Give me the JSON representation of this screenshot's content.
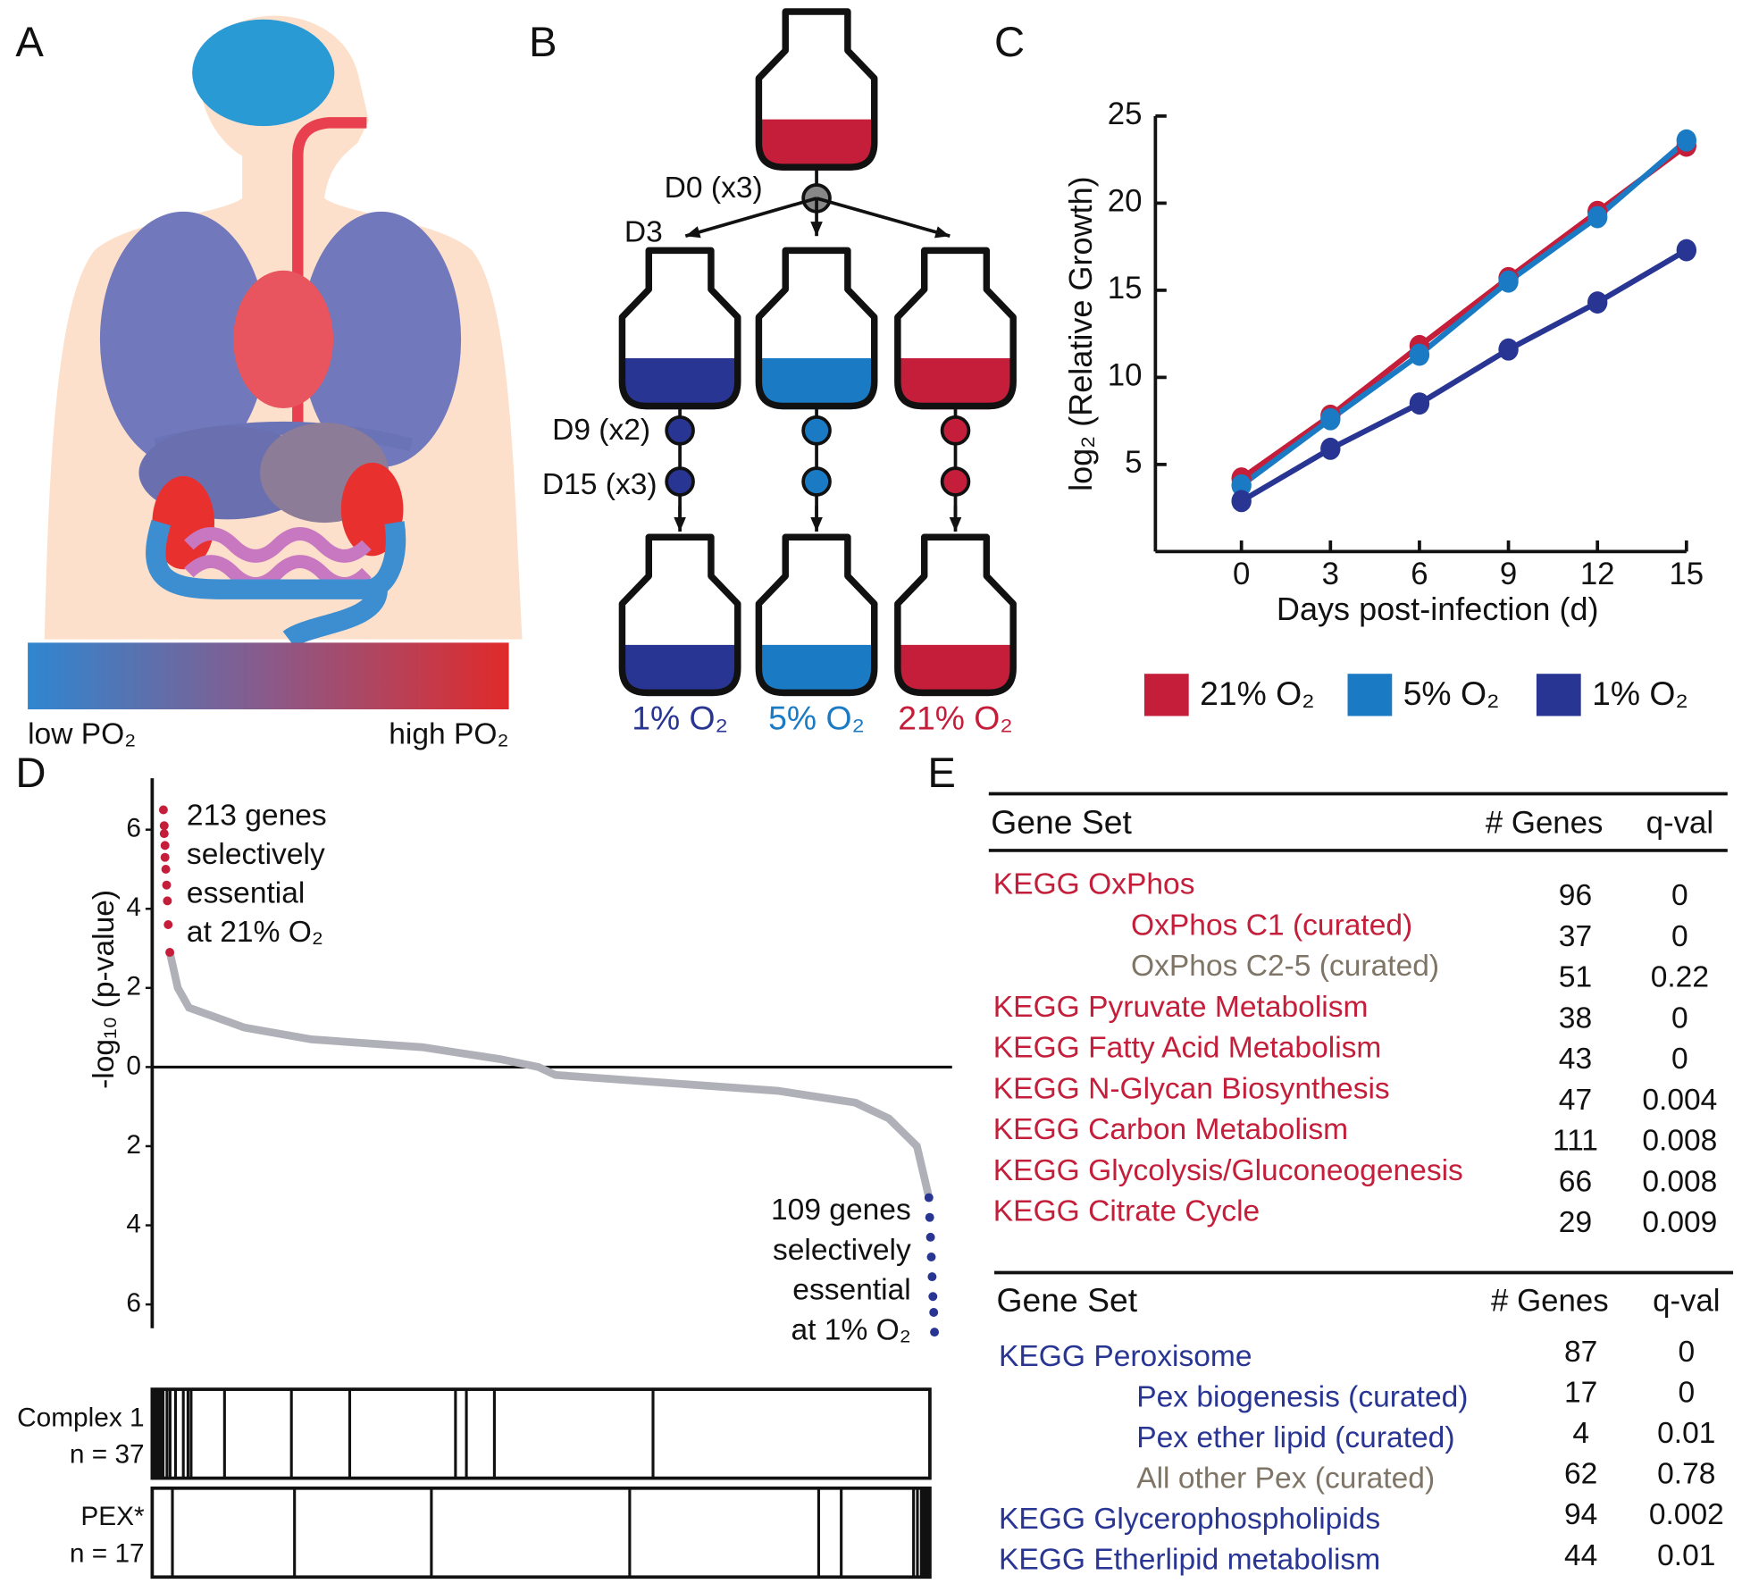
{
  "panels": {
    "a": {
      "label": "A",
      "low": "low PO₂",
      "high": "high PO₂"
    },
    "b": {
      "label": "B",
      "d0": "D0 (x3)",
      "d3": "D3",
      "d9": "D9 (x2)",
      "d15": "D15 (x3)",
      "conditions": [
        {
          "label": "1% O₂",
          "color": "#283593"
        },
        {
          "label": "5% O₂",
          "color": "#1a7bc4"
        },
        {
          "label": "21% O₂",
          "color": "#c41e3a"
        }
      ]
    },
    "c": {
      "label": "C",
      "chart_data": {
        "type": "line",
        "xlabel": "Days post-infection (d)",
        "ylabel": "log₂ (Relative Growth)",
        "x": [
          0,
          3,
          6,
          9,
          12,
          15
        ],
        "xlim": [
          -2.9,
          15
        ],
        "xticks": [
          0,
          3,
          6,
          9,
          12,
          15
        ],
        "ylim": [
          0,
          25
        ],
        "yticks": [
          5,
          10,
          15,
          20,
          25
        ],
        "series": [
          {
            "name": "21% O₂",
            "color": "#c41e3a",
            "values": [
              4.2,
              7.8,
              11.8,
              15.7,
              19.5,
              23.3
            ]
          },
          {
            "name": "5% O₂",
            "color": "#1a7bc4",
            "values": [
              3.8,
              7.6,
              11.3,
              15.5,
              19.2,
              23.6
            ]
          },
          {
            "name": "1% O₂",
            "color": "#283593",
            "values": [
              2.9,
              5.9,
              8.5,
              11.6,
              14.3,
              17.3
            ]
          }
        ]
      }
    },
    "d": {
      "label": "D",
      "chart_data": {
        "type": "scatter",
        "ylabel": "-log₁₀ (p-value)",
        "xlim": [
          0,
          100
        ],
        "ylim": [
          -6.6,
          7.3
        ],
        "yticks": [
          {
            "value": -6,
            "label": "6"
          },
          {
            "value": -4,
            "label": "4"
          },
          {
            "value": -2,
            "label": "2"
          },
          0,
          2,
          4,
          6
        ],
        "series": [
          {
            "color": "#b0b0b8",
            "x": [
              2.2,
              3.2,
              4.6,
              11.5,
              19.9,
              33.8,
              43.5,
              48.3,
              50.4,
              64.3,
              78.2,
              87.9,
              92.1,
              95.6,
              97
            ],
            "values": [
              2.9,
              2,
              1.5,
              1,
              0.7,
              0.5,
              0.2,
              0,
              -0.2,
              -0.4,
              -0.6,
              -0.9,
              -1.3,
              -2,
              -3.2
            ]
          },
          {
            "color": "#c41e3a",
            "x": [
              1.4,
              1.5,
              1.5,
              1.6,
              1.6,
              1.7,
              1.8,
              1.9,
              2,
              2.2
            ],
            "values": [
              6.5,
              6.1,
              5.9,
              5.6,
              5.3,
              5,
              4.6,
              4.2,
              3.6,
              2.9
            ]
          },
          {
            "color": "#283593",
            "x": [
              97.1,
              97.2,
              97.3,
              97.4,
              97.5,
              97.6,
              97.7,
              97.8
            ],
            "values": [
              -3.3,
              -3.8,
              -4.3,
              -4.8,
              -5.3,
              -5.8,
              -6.2,
              -6.7
            ]
          }
        ],
        "annotation_top": [
          "213 genes",
          "selectively",
          "essential",
          "at 21% O₂"
        ],
        "annotation_bottom": [
          "109 genes",
          "selectively",
          "essential",
          "at 1% O₂"
        ],
        "rugs": [
          {
            "name": "Complex 1",
            "n": "n = 37",
            "x": [
              0.3,
              0.6,
              0.9,
              1.1,
              1.4,
              1.9,
              2.3,
              3,
              4,
              4.6,
              5,
              9.3,
              17.9,
              25.4,
              39,
              40.4,
              44,
              64.4
            ]
          },
          {
            "name": "PEX*",
            "n": "n = 17",
            "x": [
              2.6,
              18.3,
              35.9,
              61.4,
              85.7,
              88.6,
              97.9,
              98.4,
              98.9,
              99.1,
              99.4,
              99.7
            ]
          }
        ]
      }
    },
    "e": {
      "label": "E",
      "tables": [
        {
          "header": [
            "Gene Set",
            "# Genes",
            "q-val"
          ],
          "rows": [
            {
              "name": "KEGG OxPhos",
              "genes": 96,
              "qval": 0,
              "color": "#c41e3a",
              "indent": false
            },
            {
              "name": "OxPhos C1 (curated)",
              "genes": 37,
              "qval": 0,
              "color": "#c41e3a",
              "indent": true
            },
            {
              "name": "OxPhos C2-5 (curated)",
              "genes": 51,
              "qval": 0.22,
              "color": "#7f7566",
              "indent": true
            },
            {
              "name": "KEGG Pyruvate Metabolism",
              "genes": 38,
              "qval": 0,
              "color": "#c41e3a",
              "indent": false
            },
            {
              "name": "KEGG Fatty Acid Metabolism",
              "genes": 43,
              "qval": 0,
              "color": "#c41e3a",
              "indent": false
            },
            {
              "name": "KEGG N-Glycan Biosynthesis",
              "genes": 47,
              "qval": 0.004,
              "color": "#c41e3a",
              "indent": false
            },
            {
              "name": "KEGG Carbon Metabolism",
              "genes": 111,
              "qval": 0.008,
              "color": "#c41e3a",
              "indent": false
            },
            {
              "name": "KEGG Glycolysis/Gluconeogenesis",
              "genes": 66,
              "qval": 0.008,
              "color": "#c41e3a",
              "indent": false
            },
            {
              "name": "KEGG Citrate Cycle",
              "genes": 29,
              "qval": 0.009,
              "color": "#c41e3a",
              "indent": false
            }
          ]
        },
        {
          "header": [
            "Gene Set",
            "# Genes",
            "q-val"
          ],
          "rows": [
            {
              "name": "KEGG Peroxisome",
              "genes": 87,
              "qval": 0,
              "color": "#283593",
              "indent": false
            },
            {
              "name": "Pex biogenesis (curated)",
              "genes": 17,
              "qval": 0,
              "color": "#283593",
              "indent": true
            },
            {
              "name": "Pex ether lipid (curated)",
              "genes": 4,
              "qval": 0.01,
              "color": "#283593",
              "indent": true
            },
            {
              "name": "All other Pex (curated)",
              "genes": 62,
              "qval": 0.78,
              "color": "#7f7566",
              "indent": true
            },
            {
              "name": "KEGG Glycerophospholipids",
              "genes": 94,
              "qval": 0.002,
              "color": "#283593",
              "indent": false
            },
            {
              "name": "KEGG Etherlipid metabolism",
              "genes": 44,
              "qval": 0.01,
              "color": "#283593",
              "indent": false
            }
          ]
        }
      ]
    }
  }
}
